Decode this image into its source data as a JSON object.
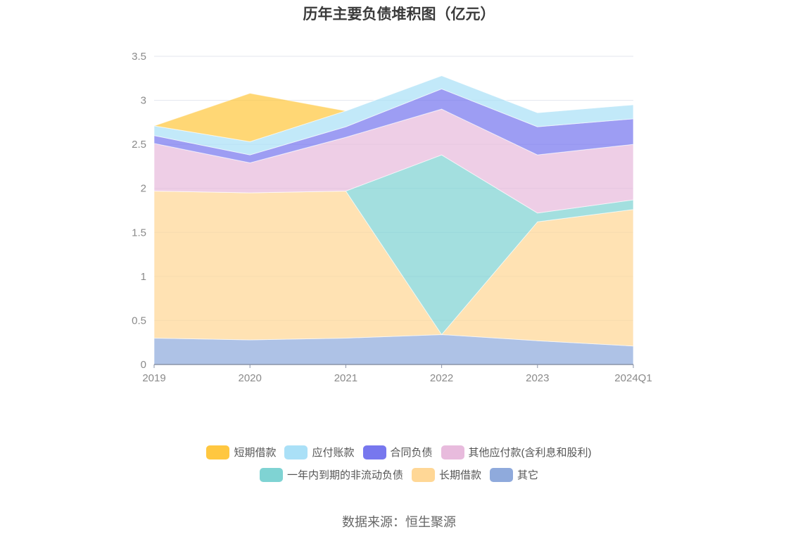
{
  "title": "历年主要负债堆积图（亿元）",
  "source": "数据来源：恒生聚源",
  "chart_data": {
    "type": "area",
    "stacked": true,
    "title": "历年主要负债堆积图（亿元）",
    "categories": [
      "2019",
      "2020",
      "2021",
      "2022",
      "2023",
      "2024Q1"
    ],
    "ylim": [
      0,
      3.5
    ],
    "yticks": [
      "0",
      "0.5",
      "1",
      "1.5",
      "2",
      "2.5",
      "3",
      "3.5"
    ],
    "grid": true,
    "legend_position": "bottom",
    "series": [
      {
        "name": "其它",
        "color": "#8faadc",
        "values": [
          0.3,
          0.28,
          0.3,
          0.34,
          0.27,
          0.21
        ]
      },
      {
        "name": "长期借款",
        "color": "#ffd796",
        "values": [
          1.67,
          1.67,
          1.67,
          0,
          1.35,
          1.55
        ]
      },
      {
        "name": "一年内到期的非流动负债",
        "color": "#7fd3d3",
        "values": [
          0,
          0,
          0,
          2.04,
          0.1,
          0.11
        ]
      },
      {
        "name": "其他应付款(含利息和股利)",
        "color": "#e8bbdd",
        "values": [
          0.54,
          0.34,
          0.61,
          0.52,
          0.66,
          0.63
        ]
      },
      {
        "name": "合同负债",
        "color": "#7777ee",
        "values": [
          0.09,
          0.09,
          0.12,
          0.23,
          0.32,
          0.29
        ]
      },
      {
        "name": "应付账款",
        "color": "#aae0f7",
        "values": [
          0.11,
          0.15,
          0.18,
          0.15,
          0.16,
          0.16
        ]
      },
      {
        "name": "短期借款",
        "color": "#ffc740",
        "values": [
          0,
          0.55,
          0,
          0,
          0,
          0
        ]
      }
    ]
  },
  "legend": {
    "row1": [
      {
        "label": "短期借款",
        "color": "#ffc740"
      },
      {
        "label": "应付账款",
        "color": "#aae0f7"
      },
      {
        "label": "合同负债",
        "color": "#7777ee"
      },
      {
        "label": "其他应付款(含利息和股利)",
        "color": "#e8bbdd"
      }
    ],
    "row2": [
      {
        "label": "一年内到期的非流动负债",
        "color": "#7fd3d3"
      },
      {
        "label": "长期借款",
        "color": "#ffd796"
      },
      {
        "label": "其它",
        "color": "#8faadc"
      }
    ]
  }
}
